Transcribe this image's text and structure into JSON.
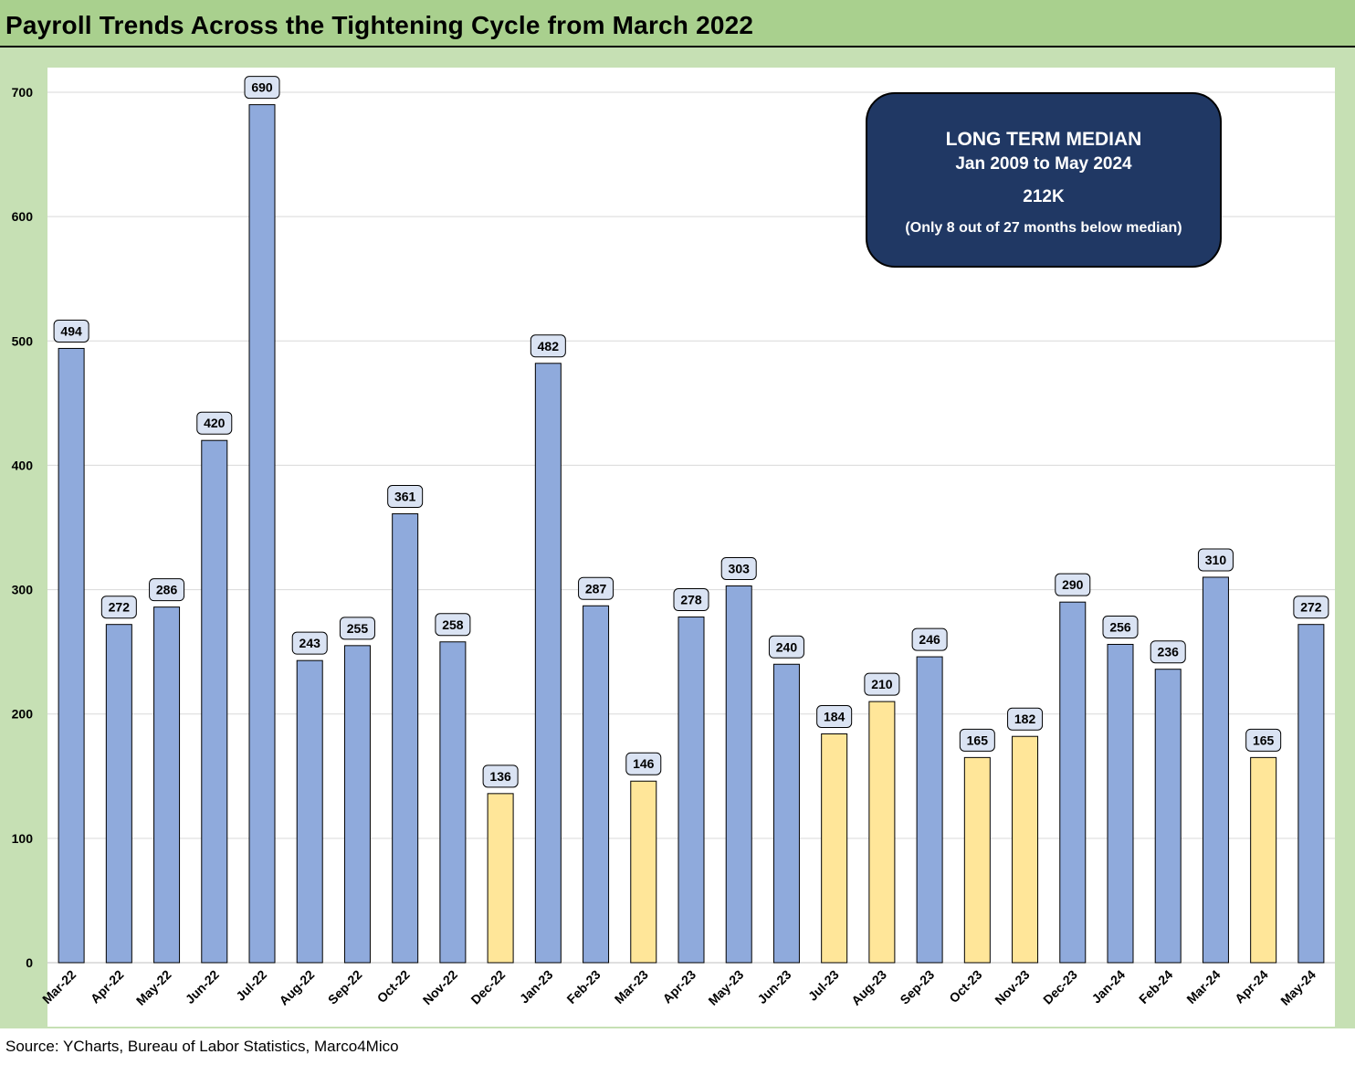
{
  "title": "Payroll Trends Across the Tightening Cycle from March 2022",
  "source": "Source: YCharts, Bureau of Labor Statistics, Marco4Mico",
  "colors": {
    "title_bg": "#a9d08e",
    "frame_bg": "#c6e0b4",
    "above_median": "#8faadc",
    "below_median": "#ffe699",
    "label_fill": "#dae3f3",
    "median_box_bg": "#203864"
  },
  "median_box": {
    "title": "LONG TERM MEDIAN",
    "range": "Jan 2009 to May 2024",
    "value": "212K",
    "note": "(Only 8 out of 27 months below median)"
  },
  "chart_data": {
    "type": "bar",
    "title": "Payroll Trends Across the Tightening Cycle from March 2022",
    "xlabel": "",
    "ylabel": "",
    "ylim": [
      0,
      700
    ],
    "yticks": [
      0,
      100,
      200,
      300,
      400,
      500,
      600,
      700
    ],
    "grid": true,
    "median_threshold": 212,
    "categories": [
      "Mar-22",
      "Apr-22",
      "May-22",
      "Jun-22",
      "Jul-22",
      "Aug-22",
      "Sep-22",
      "Oct-22",
      "Nov-22",
      "Dec-22",
      "Jan-23",
      "Feb-23",
      "Mar-23",
      "Apr-23",
      "May-23",
      "Jun-23",
      "Jul-23",
      "Aug-23",
      "Sep-23",
      "Oct-23",
      "Nov-23",
      "Dec-23",
      "Jan-24",
      "Feb-24",
      "Mar-24",
      "Apr-24",
      "May-24"
    ],
    "values": [
      494,
      272,
      286,
      420,
      690,
      243,
      255,
      361,
      258,
      136,
      482,
      287,
      146,
      278,
      303,
      240,
      184,
      210,
      246,
      165,
      182,
      290,
      256,
      236,
      310,
      165,
      272
    ]
  }
}
